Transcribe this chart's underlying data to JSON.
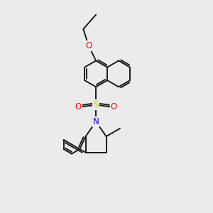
{
  "background_color": "#ebebeb",
  "bond_color": "#1a1a1a",
  "bond_width": 1.4,
  "dbo": 0.08,
  "atom_colors": {
    "O": "#ff0000",
    "S": "#cccc00",
    "N": "#0000ee",
    "C": "#1a1a1a"
  },
  "font_size_atom": 8.5
}
